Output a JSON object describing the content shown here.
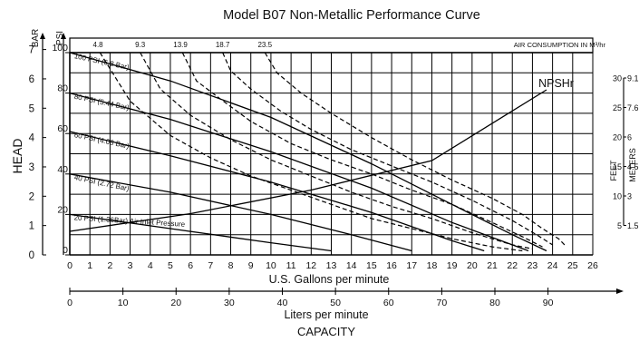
{
  "chart_data": {
    "type": "line",
    "title": "Model B07 Non-Metallic Performance Curve",
    "x_primary": {
      "label": "U.S. Gallons per minute",
      "range": [
        0,
        26
      ],
      "ticks": [
        "0",
        "1",
        "2",
        "3",
        "4",
        "5",
        "6",
        "7",
        "8",
        "9",
        "10",
        "11",
        "12",
        "13",
        "14",
        "15",
        "16",
        "17",
        "18",
        "19",
        "20",
        "21",
        "22",
        "23",
        "24",
        "25",
        "26"
      ]
    },
    "x_secondary": {
      "label": "Liters per minute",
      "ticks": [
        "0",
        "10",
        "20",
        "30",
        "40",
        "50",
        "60",
        "70",
        "80",
        "90"
      ],
      "tick_values_gpm": [
        0,
        2.642,
        5.283,
        7.925,
        10.567,
        13.209,
        15.85,
        18.492,
        21.134,
        23.775
      ]
    },
    "x_category_label": "CAPACITY",
    "y_psi": {
      "label": "PSI",
      "range": [
        0,
        100
      ],
      "ticks": [
        "0",
        "20",
        "40",
        "60",
        "80",
        "100"
      ]
    },
    "y_bar": {
      "label": "BAR",
      "ticks": [
        "0",
        "1",
        "2",
        "3",
        "4",
        "5",
        "6",
        "7"
      ],
      "tick_values_psi": [
        0,
        14.504,
        29.008,
        43.511,
        58.015,
        72.519,
        87.023,
        101.527
      ]
    },
    "y_category_label": "HEAD",
    "npshr_axis": {
      "feet_label": "FEET",
      "meters_label": "METERS",
      "rows": [
        {
          "feet": "30",
          "meters": "9.1"
        },
        {
          "feet": "25",
          "meters": "7.6"
        },
        {
          "feet": "20",
          "meters": "6"
        },
        {
          "feet": "15",
          "meters": "4.5"
        },
        {
          "feet": "10",
          "meters": "3"
        },
        {
          "feet": "5",
          "meters": "1.5"
        }
      ]
    },
    "air_consumption": {
      "label": "AIR CONSUMPTION IN M³/hr",
      "ticks": [
        "4.8",
        "9.3",
        "13.9",
        "18.7",
        "23.5"
      ],
      "tick_values_gpm": [
        1.4,
        3.5,
        5.5,
        7.6,
        9.7
      ]
    },
    "grid": true,
    "pressure_curves": [
      {
        "name": "100 PSI (6.8 Bar)",
        "x": [
          0,
          5,
          10,
          15,
          19,
          22,
          23.7
        ],
        "y": [
          100,
          86,
          68,
          45,
          25,
          10,
          2
        ]
      },
      {
        "name": "80 PSI (5.44 Bar)",
        "x": [
          0,
          5,
          10,
          15,
          19,
          22,
          22.8
        ],
        "y": [
          80,
          67,
          51,
          33,
          16,
          5,
          2
        ]
      },
      {
        "name": "60 PSI (4.08 Bar)",
        "x": [
          0,
          5,
          10,
          15,
          19,
          20.6
        ],
        "y": [
          61,
          49,
          36,
          21,
          7,
          2
        ]
      },
      {
        "name": "40 PSI (2.72 Bar)",
        "x": [
          0,
          5,
          10,
          14,
          17
        ],
        "y": [
          40,
          31,
          20,
          10,
          2
        ]
      },
      {
        "name": "20 PSI (1.36Bar) Air Inlet Pressure",
        "x": [
          0,
          5,
          10,
          13
        ],
        "y": [
          20,
          13,
          6,
          2
        ]
      }
    ],
    "air_curves": [
      {
        "x": [
          1.5,
          3,
          5,
          7,
          9,
          11,
          13,
          15,
          17,
          19,
          21,
          22.5
        ],
        "y": [
          100,
          76,
          59,
          48,
          39,
          32,
          25,
          18,
          13,
          8,
          4,
          2
        ]
      },
      {
        "x": [
          3.5,
          4.5,
          6,
          8,
          10,
          12,
          14,
          16,
          18,
          20,
          22,
          23
        ],
        "y": [
          100,
          82,
          69,
          57,
          47,
          39,
          31,
          24,
          18,
          11,
          5,
          3
        ]
      },
      {
        "x": [
          5.6,
          6.3,
          7.5,
          9,
          11,
          13,
          15,
          17,
          19,
          21,
          22.5,
          23.5
        ],
        "y": [
          100,
          86,
          77,
          66,
          55,
          47,
          40,
          32,
          25,
          16,
          9,
          4
        ]
      },
      {
        "x": [
          7.6,
          8,
          9,
          10.5,
          12,
          14,
          16,
          18,
          20,
          22,
          23.2,
          24
        ],
        "y": [
          100,
          91,
          82,
          71,
          62,
          52,
          44,
          36,
          27,
          17,
          10,
          5
        ]
      },
      {
        "x": [
          9.7,
          10.3,
          11.5,
          13,
          15,
          17,
          19,
          21,
          22.5,
          23.5,
          24.3,
          24.6
        ],
        "y": [
          100,
          90,
          80,
          70,
          58,
          47,
          37,
          28,
          20,
          13,
          8,
          5
        ]
      }
    ],
    "npshr_curve": {
      "name": "NPSHr",
      "x": [
        0,
        6,
        12,
        18,
        23.7
      ],
      "y": [
        4,
        7,
        11,
        16,
        28
      ]
    }
  }
}
